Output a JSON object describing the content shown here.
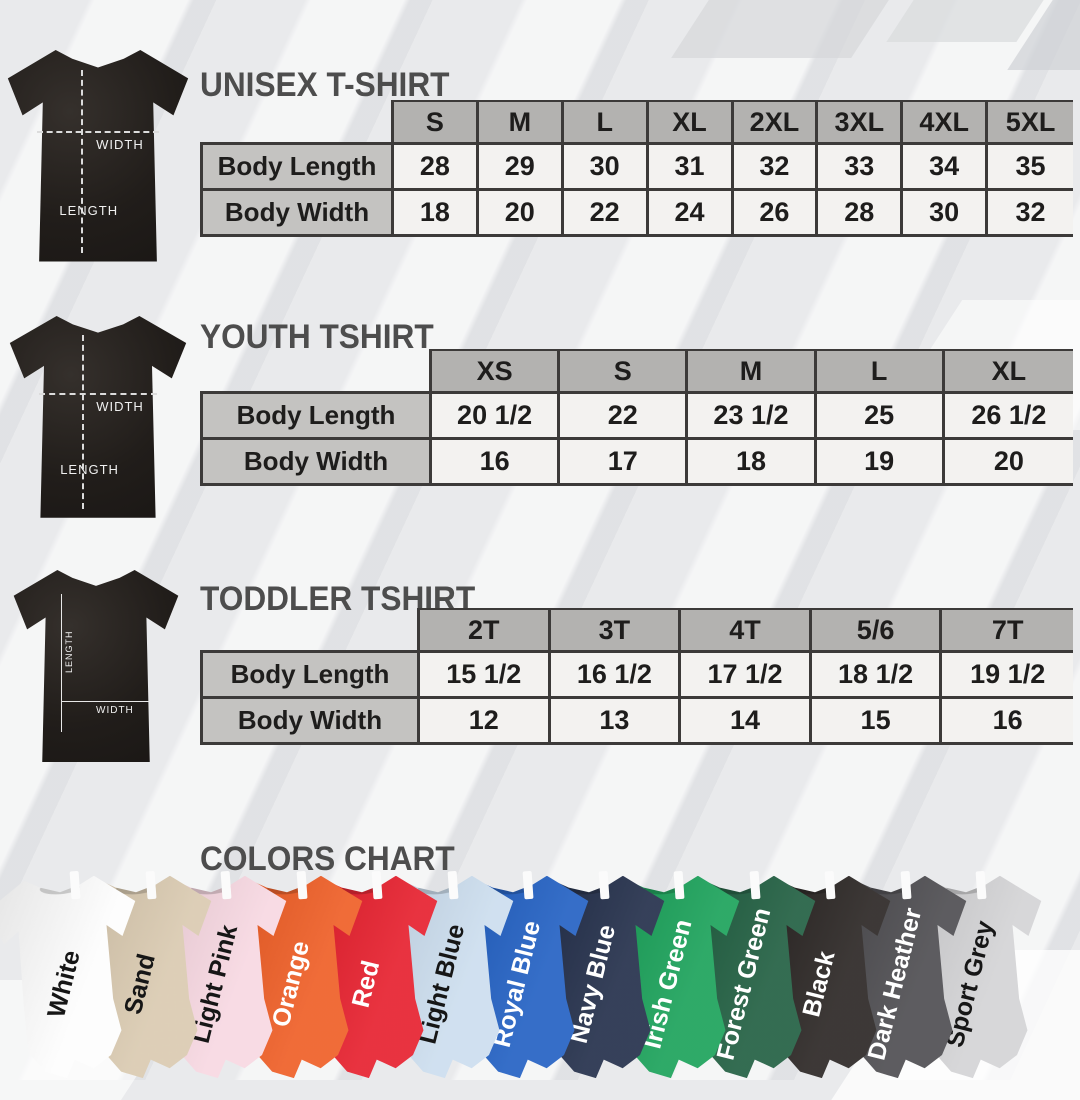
{
  "chart_data": [
    {
      "type": "table",
      "title": "UNISEX T-SHIRT",
      "sizes": [
        "S",
        "M",
        "L",
        "XL",
        "2XL",
        "3XL",
        "4XL",
        "5XL"
      ],
      "rows": [
        {
          "label": "Body Length",
          "values": [
            "28",
            "29",
            "30",
            "31",
            "32",
            "33",
            "34",
            "35"
          ]
        },
        {
          "label": "Body Width",
          "values": [
            "18",
            "20",
            "22",
            "24",
            "26",
            "28",
            "30",
            "32"
          ]
        }
      ]
    },
    {
      "type": "table",
      "title": "YOUTH TSHIRT",
      "sizes": [
        "XS",
        "S",
        "M",
        "L",
        "XL"
      ],
      "rows": [
        {
          "label": "Body Length",
          "values": [
            "20 1/2",
            "22",
            "23 1/2",
            "25",
            "26 1/2"
          ]
        },
        {
          "label": "Body Width",
          "values": [
            "16",
            "17",
            "18",
            "19",
            "20"
          ]
        }
      ]
    },
    {
      "type": "table",
      "title": "TODDLER TSHIRT",
      "sizes": [
        "2T",
        "3T",
        "4T",
        "5/6",
        "7T"
      ],
      "rows": [
        {
          "label": "Body Length",
          "values": [
            "15 1/2",
            "16 1/2",
            "17 1/2",
            "18 1/2",
            "19 1/2"
          ]
        },
        {
          "label": "Body Width",
          "values": [
            "12",
            "13",
            "14",
            "15",
            "16"
          ]
        }
      ]
    }
  ],
  "diagram": {
    "width_label": "WIDTH",
    "length_label": "LENGTH"
  },
  "colors_chart": {
    "title": "COLORS CHART",
    "shirts": [
      {
        "name": "White",
        "hex": "#fdfdfd",
        "text": "#161616"
      },
      {
        "name": "Sand",
        "hex": "#d9c9af",
        "text": "#161616"
      },
      {
        "name": "Light Pink",
        "hex": "#f7d7e1",
        "text": "#161616"
      },
      {
        "name": "Orange",
        "hex": "#ee5b22",
        "text": "#ffffff"
      },
      {
        "name": "Red",
        "hex": "#e61c2a",
        "text": "#ffffff"
      },
      {
        "name": "Light Blue",
        "hex": "#cbddee",
        "text": "#161616"
      },
      {
        "name": "Royal Blue",
        "hex": "#1f5ec2",
        "text": "#ffffff"
      },
      {
        "name": "Navy Blue",
        "hex": "#1f2b47",
        "text": "#ffffff"
      },
      {
        "name": "Irish Green",
        "hex": "#17a057",
        "text": "#ffffff"
      },
      {
        "name": "Forest Green",
        "hex": "#1d5c3e",
        "text": "#ffffff"
      },
      {
        "name": "Black",
        "hex": "#272220",
        "text": "#ffffff"
      },
      {
        "name": "Dark Heather",
        "hex": "#4b4a4e",
        "text": "#ffffff"
      },
      {
        "name": "Sport Grey",
        "hex": "#d3d3d5",
        "text": "#161616"
      }
    ]
  },
  "palette": {
    "title_color": "#4d4d4d",
    "header_cell_bg": "#b3b2b0",
    "label_cell_bg": "#c4c3c1",
    "value_cell_bg": "#f3f2f0",
    "grid_line": "#3c3a39",
    "diagram_shirt": "#211d1a",
    "background": "#e9eaec"
  }
}
